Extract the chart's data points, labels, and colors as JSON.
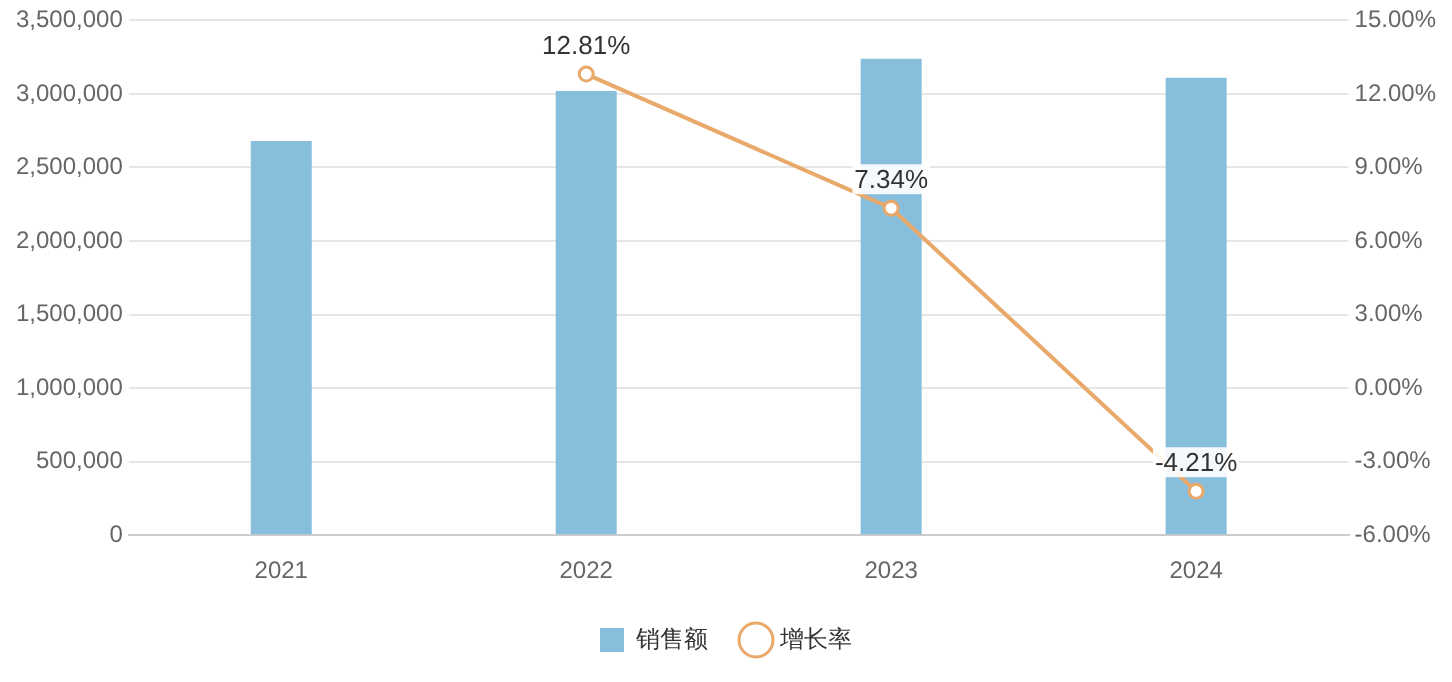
{
  "chart_data": {
    "type": "bar",
    "categories": [
      "2021",
      "2022",
      "2023",
      "2024"
    ],
    "series": [
      {
        "name": "销售额",
        "color": "#86bedb",
        "values": [
          2680000,
          3020000,
          3240000,
          3110000
        ]
      },
      {
        "name": "增长率",
        "type": "line",
        "axis": "y2",
        "color": "#e8a96a",
        "marker": "circle",
        "values": [
          null,
          12.81,
          7.34,
          -4.21
        ],
        "value_labels": [
          null,
          "12.81%",
          "7.34%",
          "-4.21%"
        ]
      }
    ],
    "ylim": [
      0,
      3500000
    ],
    "yticks": [
      {
        "value": 0,
        "label": "0"
      },
      {
        "value": 500000,
        "label": "500,000"
      },
      {
        "value": 1000000,
        "label": "1,000,000"
      },
      {
        "value": 1500000,
        "label": "1,500,000"
      },
      {
        "value": 2000000,
        "label": "2,000,000"
      },
      {
        "value": 2500000,
        "label": "2,500,000"
      },
      {
        "value": 3000000,
        "label": "3,000,000"
      },
      {
        "value": 3500000,
        "label": "3,500,000"
      }
    ],
    "y2lim": [
      -6,
      15
    ],
    "y2ticks": [
      {
        "value": -6,
        "label": "-6.00%"
      },
      {
        "value": -3,
        "label": "-3.00%"
      },
      {
        "value": 0,
        "label": "0.00%"
      },
      {
        "value": 3,
        "label": "3.00%"
      },
      {
        "value": 6,
        "label": "6.00%"
      },
      {
        "value": 9,
        "label": "9.00%"
      },
      {
        "value": 12,
        "label": "12.00%"
      },
      {
        "value": 15,
        "label": "15.00%"
      }
    ],
    "grid": "y",
    "legend": "bottom"
  }
}
